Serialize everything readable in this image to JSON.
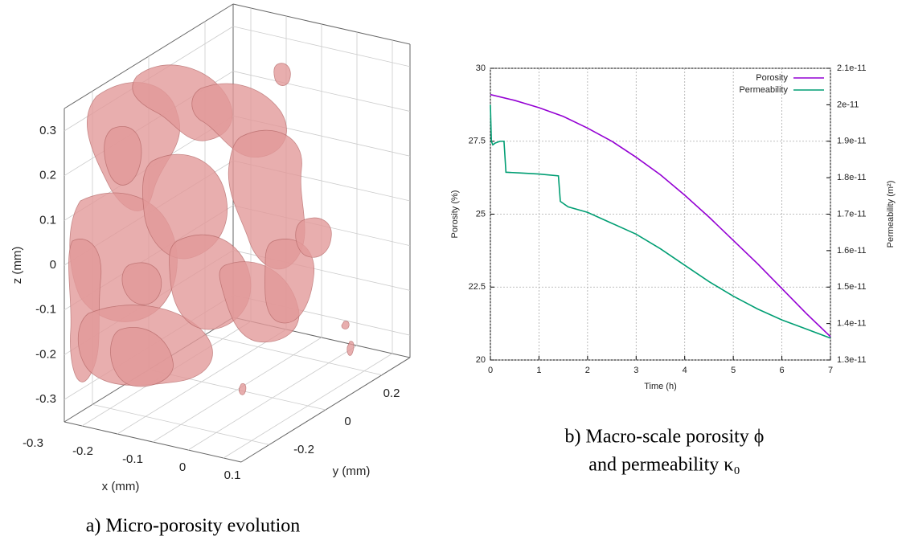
{
  "chart_data": [
    {
      "type": "isosurface3d",
      "xlabel": "x (mm)",
      "ylabel": "y (mm)",
      "zlabel": "z (mm)",
      "xlim": [
        -0.35,
        0.15
      ],
      "xticks": [
        -0.3,
        -0.2,
        -0.1,
        0,
        0.1
      ],
      "ylim": [
        -0.3,
        0.3
      ],
      "yticks": [
        -0.2,
        0,
        0.2
      ],
      "zlim": [
        -0.35,
        0.35
      ],
      "zticks": [
        -0.3,
        -0.2,
        -0.1,
        0,
        0.1,
        0.2,
        0.3
      ],
      "color": "#e39a9a",
      "grid": true,
      "caption": "a) Micro-porosity evolution"
    },
    {
      "type": "line",
      "xlabel": "Time (h)",
      "ylabel": "Porosity (%)",
      "y2label": "Permeability (m²)",
      "xlim": [
        0,
        7
      ],
      "xticks": [
        0,
        1,
        2,
        3,
        4,
        5,
        6,
        7
      ],
      "ylim": [
        20,
        30
      ],
      "yticks": [
        20,
        22.5,
        25,
        27.5,
        30
      ],
      "y2lim": [
        1.3e-11,
        2.1e-11
      ],
      "y2ticks": [
        1.3e-11,
        1.4e-11,
        1.5e-11,
        1.6e-11,
        1.7e-11,
        1.8e-11,
        1.9e-11,
        2e-11,
        2.1e-11
      ],
      "grid": true,
      "legend": "top-right",
      "series": [
        {
          "name": "Porosity",
          "color": "#9400d3",
          "x": [
            0,
            0.5,
            1,
            1.5,
            2,
            2.5,
            3,
            3.5,
            4,
            4.5,
            5,
            5.5,
            6,
            6.5,
            7
          ],
          "values": [
            29.1,
            28.9,
            28.65,
            28.35,
            27.95,
            27.5,
            26.95,
            26.35,
            25.65,
            24.9,
            24.1,
            23.3,
            22.45,
            21.6,
            20.8
          ]
        },
        {
          "name": "Permeability",
          "color": "#009e73",
          "axis": "y2",
          "x": [
            0,
            0.02,
            0.05,
            0.1,
            0.2,
            0.28,
            0.32,
            0.6,
            1.0,
            1.4,
            1.44,
            1.6,
            2,
            2.5,
            3,
            3.5,
            4,
            4.5,
            5,
            5.5,
            6,
            6.5,
            7
          ],
          "values": [
            2e-11,
            1.9e-11,
            1.89e-11,
            1.895e-11,
            1.9e-11,
            1.9e-11,
            1.815e-11,
            1.813e-11,
            1.81e-11,
            1.805e-11,
            1.735e-11,
            1.72e-11,
            1.705e-11,
            1.675e-11,
            1.645e-11,
            1.605e-11,
            1.56e-11,
            1.515e-11,
            1.475e-11,
            1.44e-11,
            1.41e-11,
            1.385e-11,
            1.36e-11
          ]
        }
      ],
      "caption": [
        "b) Macro-scale porosity ϕ",
        "and permeability κ₀"
      ]
    }
  ]
}
